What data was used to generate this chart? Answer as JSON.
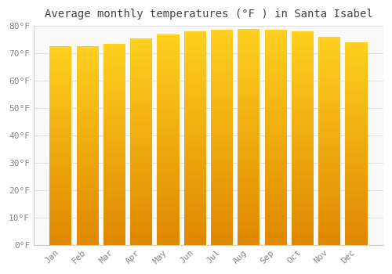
{
  "title": "Average monthly temperatures (°F ) in Santa Isabel",
  "months": [
    "Jan",
    "Feb",
    "Mar",
    "Apr",
    "May",
    "Jun",
    "Jul",
    "Aug",
    "Sep",
    "Oct",
    "Nov",
    "Dec"
  ],
  "values": [
    72.5,
    72.5,
    73.5,
    75.5,
    77.0,
    78.0,
    78.5,
    79.0,
    78.5,
    78.0,
    76.0,
    74.0
  ],
  "bar_color_main": "#F5A800",
  "bar_color_light": "#FFD040",
  "bar_color_dark": "#E08000",
  "background_color": "#FFFFFF",
  "plot_bg_color": "#FAFAFA",
  "grid_color": "#E0E0E0",
  "ylim": [
    0,
    80
  ],
  "ytick_interval": 10,
  "title_fontsize": 10,
  "tick_fontsize": 8,
  "bar_width": 0.82
}
